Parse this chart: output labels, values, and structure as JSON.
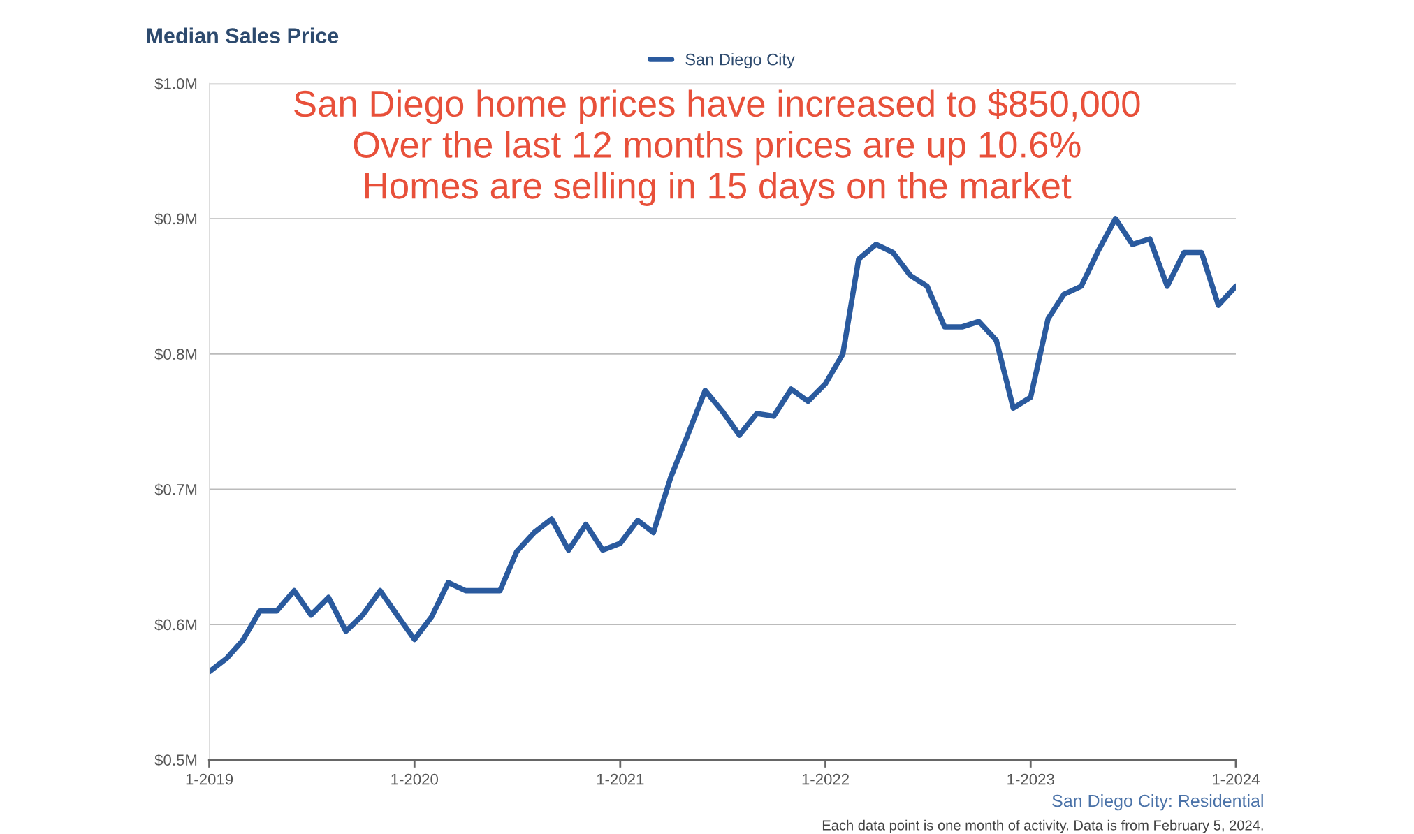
{
  "chart_data": {
    "type": "line",
    "title": "Median Sales Price",
    "x": [
      "2019-01",
      "2019-02",
      "2019-03",
      "2019-04",
      "2019-05",
      "2019-06",
      "2019-07",
      "2019-08",
      "2019-09",
      "2019-10",
      "2019-11",
      "2019-12",
      "2020-01",
      "2020-02",
      "2020-03",
      "2020-04",
      "2020-05",
      "2020-06",
      "2020-07",
      "2020-08",
      "2020-09",
      "2020-10",
      "2020-11",
      "2020-12",
      "2021-01",
      "2021-02",
      "2021-03",
      "2021-04",
      "2021-05",
      "2021-06",
      "2021-07",
      "2021-08",
      "2021-09",
      "2021-10",
      "2021-11",
      "2021-12",
      "2022-01",
      "2022-02",
      "2022-03",
      "2022-04",
      "2022-05",
      "2022-06",
      "2022-07",
      "2022-08",
      "2022-09",
      "2022-10",
      "2022-11",
      "2022-12",
      "2023-01",
      "2023-02",
      "2023-03",
      "2023-04",
      "2023-05",
      "2023-06",
      "2023-07",
      "2023-08",
      "2023-09",
      "2023-10",
      "2023-11",
      "2023-12",
      "2024-01"
    ],
    "series": [
      {
        "name": "San Diego City",
        "color": "#2a5a9e",
        "values": [
          0.565,
          0.575,
          0.588,
          0.61,
          0.61,
          0.625,
          0.607,
          0.62,
          0.595,
          0.607,
          0.625,
          0.607,
          0.589,
          0.606,
          0.631,
          0.625,
          0.625,
          0.625,
          0.654,
          0.668,
          0.678,
          0.655,
          0.674,
          0.655,
          0.66,
          0.677,
          0.668,
          0.709,
          0.74,
          0.773,
          0.758,
          0.74,
          0.756,
          0.754,
          0.774,
          0.765,
          0.778,
          0.8,
          0.87,
          0.881,
          0.875,
          0.858,
          0.85,
          0.82,
          0.82,
          0.824,
          0.81,
          0.76,
          0.768,
          0.826,
          0.844,
          0.85,
          0.876,
          0.9,
          0.881,
          0.885,
          0.85,
          0.875,
          0.875,
          0.836,
          0.85
        ]
      }
    ],
    "xlim": [
      "2019-01",
      "2024-01"
    ],
    "xticks": [
      {
        "value": "2019-01",
        "label": "1-2019"
      },
      {
        "value": "2020-01",
        "label": "1-2020"
      },
      {
        "value": "2021-01",
        "label": "1-2021"
      },
      {
        "value": "2022-01",
        "label": "1-2022"
      },
      {
        "value": "2023-01",
        "label": "1-2023"
      },
      {
        "value": "2024-01",
        "label": "1-2024"
      }
    ],
    "ylim": [
      0.5,
      1.0
    ],
    "yticks": [
      {
        "value": 0.5,
        "label": "$0.5M"
      },
      {
        "value": 0.6,
        "label": "$0.6M"
      },
      {
        "value": 0.7,
        "label": "$0.7M"
      },
      {
        "value": 0.8,
        "label": "$0.8M"
      },
      {
        "value": 0.9,
        "label": "$0.9M"
      },
      {
        "value": 1.0,
        "label": "$1.0M"
      }
    ],
    "grid": "y",
    "legend": "top",
    "marker": "none",
    "line_style": "solid",
    "annotations": [
      "San Diego home prices have increased to $850,000\nOver the last 12 months prices are up 10.6%\nHomes are selling in 15 days on the market",
      "San Diego City: Residential",
      "Each data point is one month of activity. Data is from February 5, 2024."
    ]
  }
}
